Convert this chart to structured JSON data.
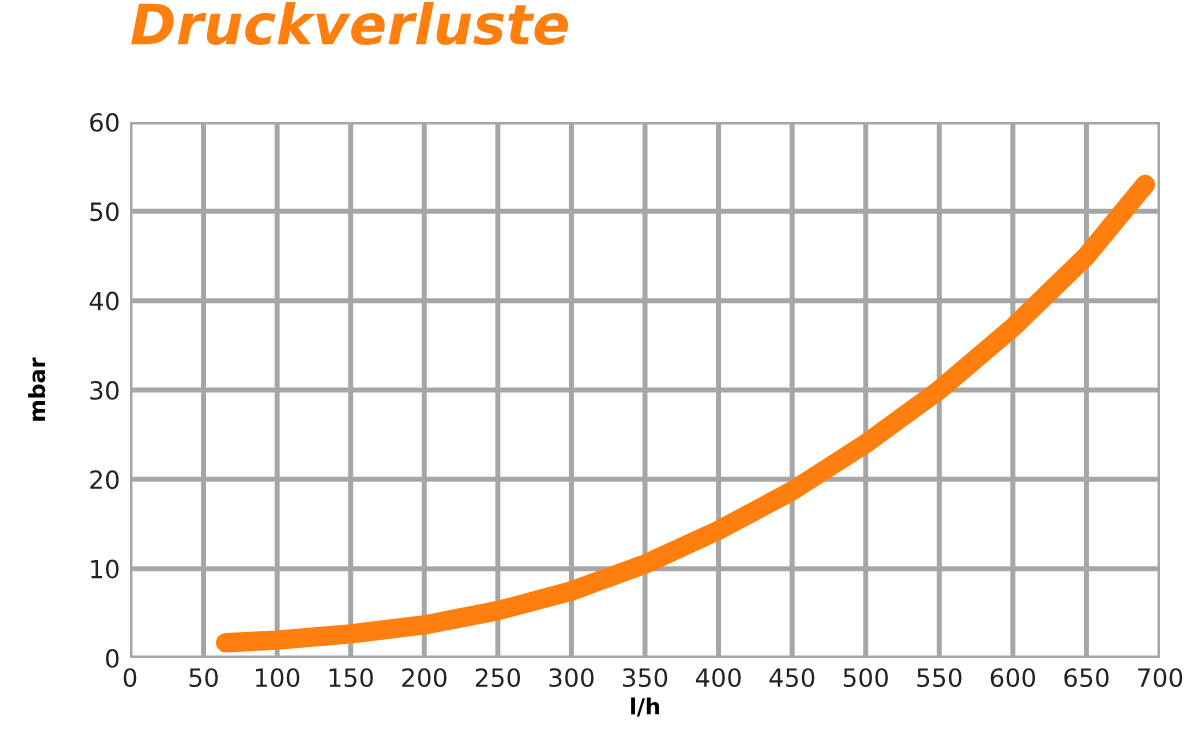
{
  "chart_data": {
    "type": "line",
    "title": "Druckverluste",
    "xlabel": "l/h",
    "ylabel": "mbar",
    "x": [
      65,
      100,
      150,
      200,
      250,
      300,
      350,
      400,
      450,
      500,
      550,
      600,
      650,
      690
    ],
    "series": [
      {
        "color": "#ff7f0e",
        "values": [
          1.7,
          2.0,
          2.7,
          3.7,
          5.3,
          7.5,
          10.5,
          14.3,
          18.7,
          24,
          30,
          37,
          45,
          53
        ]
      }
    ],
    "xlim": [
      0,
      700
    ],
    "xticks": [
      0,
      50,
      100,
      150,
      200,
      250,
      300,
      350,
      400,
      450,
      500,
      550,
      600,
      650,
      700
    ],
    "ylim": [
      0,
      60
    ],
    "yticks": [
      0,
      10,
      20,
      30,
      40,
      50,
      60
    ],
    "grid": true,
    "marker": "none",
    "line_style": "solid"
  }
}
